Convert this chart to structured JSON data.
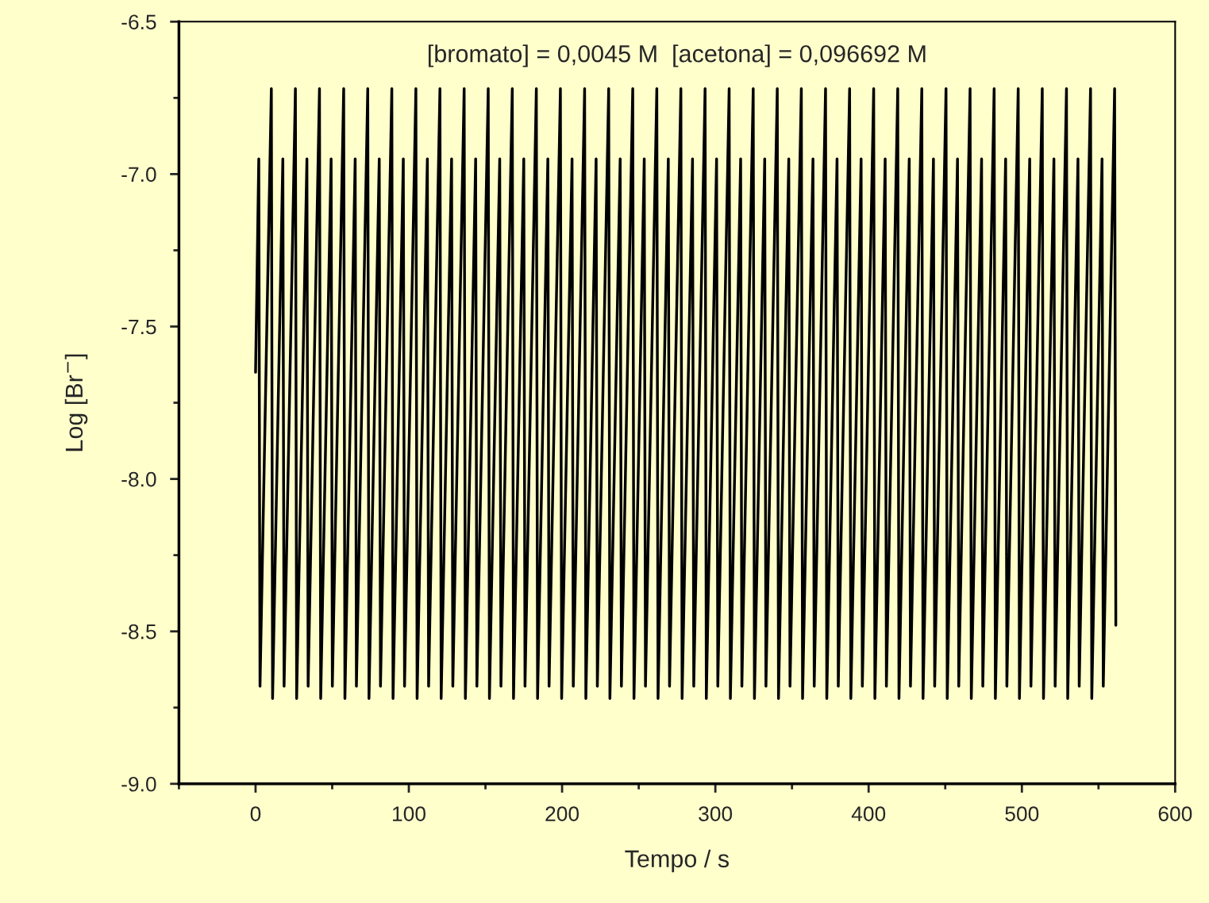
{
  "chart_data": {
    "type": "line",
    "xlabel": "Tempo / s",
    "ylabel": "Log [Br$^{−}$]",
    "annotations": [
      "[bromato] = 0,0045 M  [acetona] = 0,096692 M"
    ],
    "xlim": [
      -50,
      600
    ],
    "xticks": [
      0,
      100,
      200,
      300,
      400,
      500,
      600
    ],
    "ylim": [
      -9.0,
      -6.5
    ],
    "yticks": [
      {
        "value": -9,
        "label": "-9.0"
      },
      -8.5,
      {
        "value": -8,
        "label": "-8.0"
      },
      -7.5,
      {
        "value": -7,
        "label": "-7.0"
      },
      -6.5
    ],
    "grid": false,
    "legend": false,
    "marker": "none",
    "line_style": "solid",
    "series": [
      {
        "color": "#000000",
        "x": [
          0,
          2.1,
          2.9,
          10.3,
          11.1,
          17.8,
          18.6,
          26.0,
          26.8,
          33.5,
          34.3,
          41.7,
          42.5,
          49.3,
          50.1,
          57.5,
          58.3,
          65.0,
          65.8,
          73.2,
          74.0,
          80.7,
          81.5,
          88.9,
          89.7,
          96.4,
          97.2,
          104.6,
          105.4,
          112.1,
          112.9,
          120.3,
          121.1,
          127.9,
          128.7,
          136.1,
          136.9,
          143.6,
          144.4,
          151.8,
          152.6,
          159.3,
          160.1,
          167.5,
          168.3,
          175.0,
          175.8,
          183.2,
          184.0,
          190.7,
          191.5,
          198.9,
          199.7,
          206.5,
          207.3,
          214.7,
          215.5,
          222.2,
          223.0,
          230.4,
          231.2,
          237.9,
          238.7,
          246.1,
          246.9,
          253.6,
          254.4,
          261.8,
          262.6,
          269.3,
          270.1,
          277.5,
          278.3,
          285.1,
          285.9,
          293.3,
          294.1,
          300.8,
          301.6,
          309.0,
          309.8,
          316.5,
          317.3,
          324.7,
          325.5,
          332.2,
          333.0,
          340.4,
          341.2,
          347.9,
          348.7,
          356.1,
          356.9,
          363.7,
          364.5,
          371.9,
          372.7,
          379.4,
          380.2,
          387.6,
          388.4,
          395.1,
          395.9,
          403.3,
          404.1,
          410.8,
          411.6,
          419.0,
          419.8,
          426.5,
          427.3,
          434.7,
          435.5,
          442.3,
          443.1,
          450.5,
          451.3,
          458.0,
          458.8,
          466.2,
          467.0,
          473.7,
          474.5,
          481.9,
          482.7,
          489.4,
          490.2,
          497.6,
          498.4,
          505.1,
          505.9,
          513.3,
          514.1,
          520.9,
          521.7,
          529.1,
          529.9,
          536.6,
          537.4,
          544.8,
          545.6,
          552.3,
          553.1,
          560.5,
          561.3
        ],
        "values": [
          -7.65,
          -6.95,
          -8.68,
          -6.72,
          -8.72,
          -6.95,
          -8.68,
          -6.72,
          -8.72,
          -6.95,
          -8.68,
          -6.72,
          -8.72,
          -6.95,
          -8.68,
          -6.72,
          -8.72,
          -6.95,
          -8.68,
          -6.72,
          -8.72,
          -6.95,
          -8.68,
          -6.72,
          -8.72,
          -6.95,
          -8.68,
          -6.72,
          -8.72,
          -6.95,
          -8.68,
          -6.72,
          -8.72,
          -6.95,
          -8.68,
          -6.72,
          -8.72,
          -6.95,
          -8.68,
          -6.72,
          -8.72,
          -6.95,
          -8.68,
          -6.72,
          -8.72,
          -6.95,
          -8.68,
          -6.72,
          -8.72,
          -6.95,
          -8.68,
          -6.72,
          -8.72,
          -6.95,
          -8.68,
          -6.72,
          -8.72,
          -6.95,
          -8.68,
          -6.72,
          -8.72,
          -6.95,
          -8.68,
          -6.72,
          -8.72,
          -6.95,
          -8.68,
          -6.72,
          -8.72,
          -6.95,
          -8.68,
          -6.72,
          -8.72,
          -6.95,
          -8.68,
          -6.72,
          -8.72,
          -6.95,
          -8.68,
          -6.72,
          -8.72,
          -6.95,
          -8.68,
          -6.72,
          -8.72,
          -6.95,
          -8.68,
          -6.72,
          -8.72,
          -6.95,
          -8.68,
          -6.72,
          -8.72,
          -6.95,
          -8.68,
          -6.72,
          -8.72,
          -6.95,
          -8.68,
          -6.72,
          -8.72,
          -6.95,
          -8.68,
          -6.72,
          -8.72,
          -6.95,
          -8.68,
          -6.72,
          -8.72,
          -6.95,
          -8.68,
          -6.72,
          -8.72,
          -6.95,
          -8.68,
          -6.72,
          -8.72,
          -6.95,
          -8.68,
          -6.72,
          -8.72,
          -6.95,
          -8.68,
          -6.72,
          -8.72,
          -6.95,
          -8.68,
          -6.72,
          -8.72,
          -6.95,
          -8.68,
          -6.72,
          -8.72,
          -6.95,
          -8.68,
          -6.72,
          -8.72,
          -6.95,
          -8.68,
          -6.72,
          -8.72,
          -6.95,
          -8.68,
          -6.72,
          -8.48
        ]
      }
    ]
  }
}
